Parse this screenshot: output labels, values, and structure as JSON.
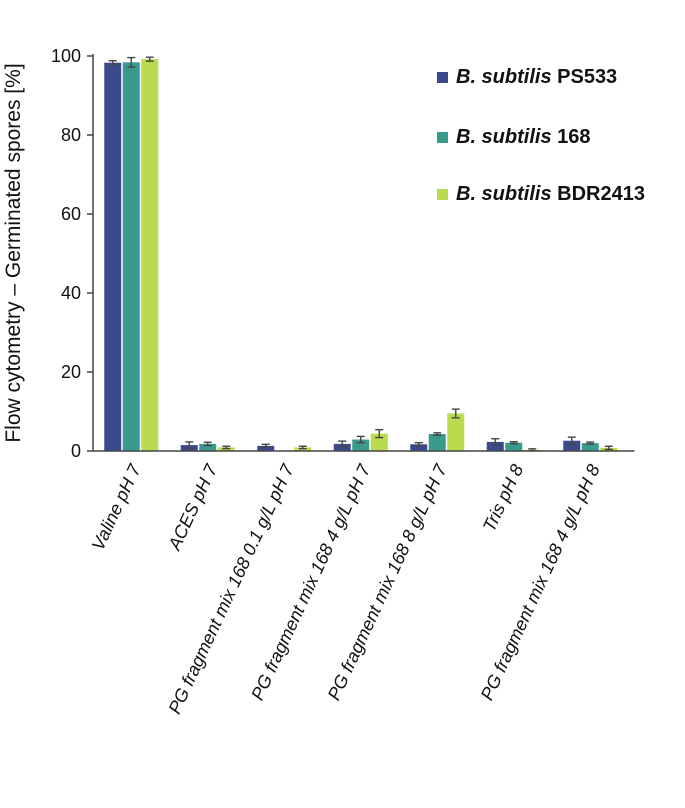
{
  "chart_data": {
    "type": "bar",
    "title": "",
    "xlabel": "",
    "ylabel": "Flow cytometry – Germinated spores [%]",
    "ylim": [
      0,
      100
    ],
    "yticks": [
      0,
      20,
      40,
      60,
      80,
      100
    ],
    "grid": false,
    "legend_position": "top-right",
    "categories": [
      "Valine pH 7",
      "ACES pH 7",
      "PG fragment mix 168 0.1 g/L pH 7",
      "PG fragment mix 168 4 g/L pH 7",
      "PG fragment mix 168 8 g/L pH 7",
      "Tris pH 8",
      "PG fragment mix 168 4 g/L pH 8"
    ],
    "series": [
      {
        "species": "B. subtilis",
        "strain": "PS533",
        "color": "#3b4a8c",
        "values": [
          98.3,
          1.5,
          1.3,
          1.8,
          1.7,
          2.3,
          2.6
        ],
        "errors": [
          0.5,
          0.8,
          0.4,
          0.7,
          0.4,
          0.8,
          0.9
        ]
      },
      {
        "species": "B. subtilis",
        "strain": "168",
        "color": "#3a9a8e",
        "values": [
          98.4,
          1.8,
          0.0,
          2.9,
          4.3,
          2.1,
          2.0
        ],
        "errors": [
          1.2,
          0.4,
          0.0,
          0.8,
          0.3,
          0.0,
          0.0
        ]
      },
      {
        "species": "B. subtilis",
        "strain": "BDR2413",
        "color": "#b8dc4e",
        "values": [
          99.2,
          0.9,
          0.9,
          4.4,
          9.5,
          0.3,
          0.8
        ],
        "errors": [
          0.5,
          0.3,
          0.3,
          1.0,
          1.1,
          0.2,
          0.4
        ]
      }
    ]
  }
}
